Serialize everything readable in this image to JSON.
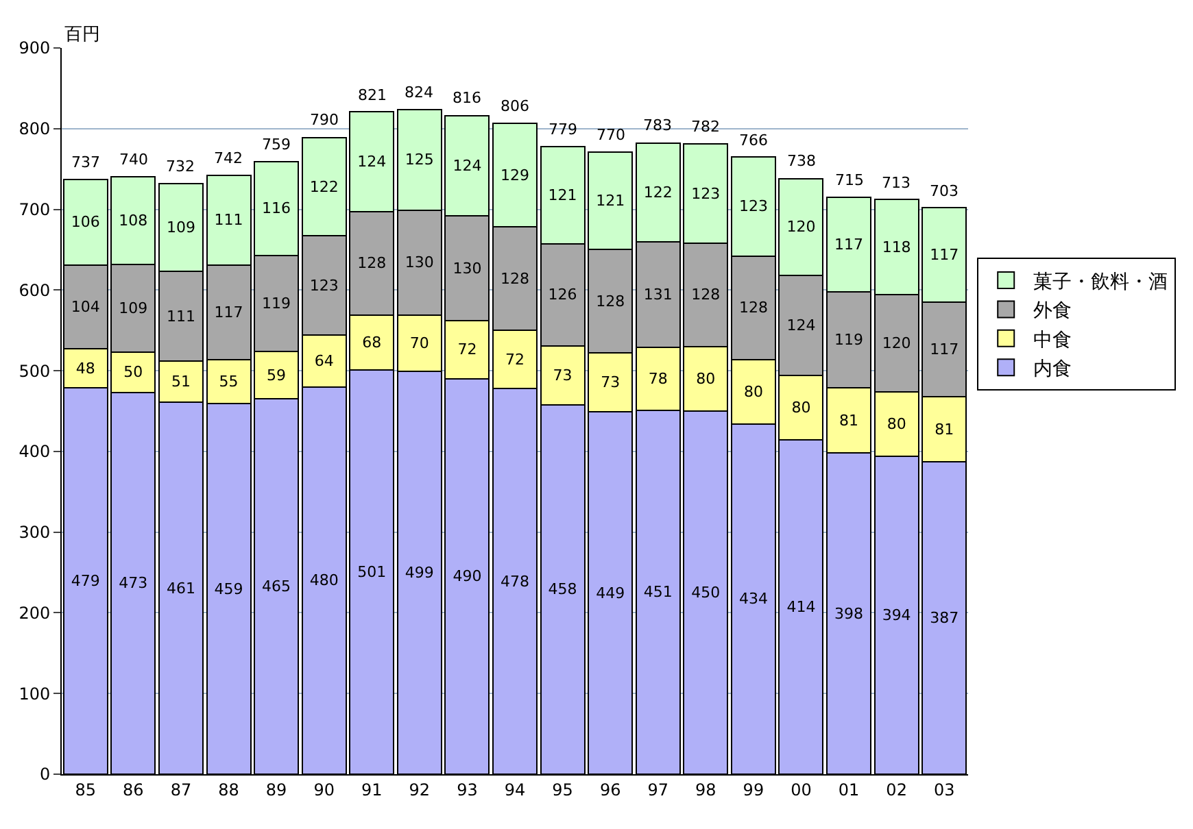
{
  "chart_data": {
    "type": "bar",
    "stacked": true,
    "ylabel": "百円",
    "categories": [
      "85",
      "86",
      "87",
      "88",
      "89",
      "90",
      "91",
      "92",
      "93",
      "94",
      "95",
      "96",
      "97",
      "98",
      "99",
      "00",
      "01",
      "02",
      "03"
    ],
    "series": [
      {
        "name": "内食",
        "color": "#b0b0f8",
        "values": [
          479,
          473,
          461,
          459,
          465,
          480,
          501,
          499,
          490,
          478,
          458,
          449,
          451,
          450,
          434,
          414,
          398,
          394,
          387
        ]
      },
      {
        "name": "中食",
        "color": "#ffff99",
        "values": [
          48,
          50,
          51,
          55,
          59,
          64,
          68,
          70,
          72,
          72,
          73,
          73,
          78,
          80,
          80,
          80,
          81,
          80,
          81
        ]
      },
      {
        "name": "外食",
        "color": "#a8a8a8",
        "values": [
          104,
          109,
          111,
          117,
          119,
          123,
          128,
          130,
          130,
          128,
          126,
          128,
          131,
          128,
          128,
          124,
          119,
          120,
          117
        ]
      },
      {
        "name": "菓子・飲料・酒",
        "color": "#ccffcc",
        "values": [
          106,
          108,
          109,
          111,
          116,
          122,
          124,
          125,
          124,
          129,
          121,
          121,
          122,
          123,
          123,
          120,
          117,
          118,
          117
        ]
      }
    ],
    "totals": [
      "737",
      "740",
      "732",
      "742",
      "759",
      "790",
      "821",
      "824",
      "816",
      "806",
      "779",
      "770",
      "783",
      "782",
      "766",
      "738",
      "715",
      "713",
      "703"
    ],
    "data_labels": true,
    "ylim": [
      0,
      900
    ],
    "yticks": [
      0,
      100,
      200,
      300,
      400,
      500,
      600,
      700,
      800,
      900
    ],
    "grid": "y",
    "legend": "right"
  }
}
